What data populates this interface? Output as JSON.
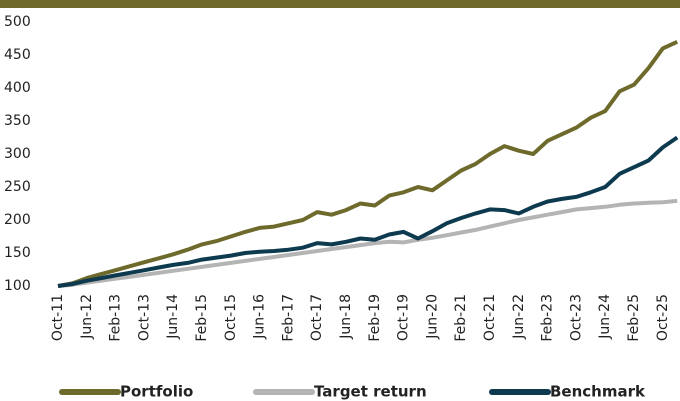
{
  "chart_data": {
    "type": "line",
    "categories": [
      "Oct-11",
      null,
      "Jun-12",
      null,
      "Feb-13",
      null,
      "Oct-13",
      null,
      "Jun-14",
      null,
      "Feb-15",
      null,
      "Oct-15",
      null,
      "Jun-16",
      null,
      "Feb-17",
      null,
      "Oct-17",
      null,
      "Jun-18",
      null,
      "Feb-19",
      null,
      "Oct-19",
      null,
      "Jun-20",
      null,
      "Feb-21",
      null,
      "Oct-21",
      null,
      "Jun-22",
      null,
      "Feb-23",
      null,
      "Oct-23",
      null,
      "Jun-24",
      null,
      "Feb-25",
      null,
      "Oct-25",
      null
    ],
    "series": [
      {
        "name": "Portfolio",
        "color": "#6e6a2c",
        "values": [
          100,
          104,
          112,
          118,
          124,
          130,
          136,
          142,
          148,
          155,
          163,
          168,
          175,
          182,
          188,
          190,
          195,
          200,
          212,
          208,
          215,
          225,
          222,
          237,
          242,
          250,
          245,
          260,
          275,
          285,
          300,
          312,
          305,
          300,
          320,
          330,
          340,
          355,
          365,
          395,
          405,
          430,
          460,
          470
        ]
      },
      {
        "name": "Target return",
        "color": "#b4b4b4",
        "values": [
          100,
          102,
          105,
          108,
          111,
          114,
          117,
          120,
          123,
          126,
          129,
          132,
          135,
          138,
          141,
          144,
          147,
          150,
          153,
          156,
          159,
          162,
          165,
          167,
          166,
          170,
          173,
          177,
          181,
          185,
          190,
          195,
          200,
          204,
          208,
          212,
          216,
          218,
          220,
          223,
          225,
          226,
          227,
          229
        ]
      },
      {
        "name": "Benchmark",
        "color": "#0d3a4f",
        "values": [
          100,
          103,
          108,
          112,
          116,
          120,
          124,
          128,
          132,
          135,
          140,
          143,
          146,
          150,
          152,
          153,
          155,
          158,
          165,
          163,
          167,
          172,
          170,
          178,
          182,
          172,
          183,
          195,
          203,
          210,
          216,
          215,
          210,
          220,
          228,
          232,
          235,
          242,
          250,
          270,
          280,
          290,
          310,
          325
        ]
      }
    ],
    "ylim": [
      100,
      500
    ],
    "yticks": [
      100,
      150,
      200,
      250,
      300,
      350,
      400,
      450,
      500
    ]
  }
}
